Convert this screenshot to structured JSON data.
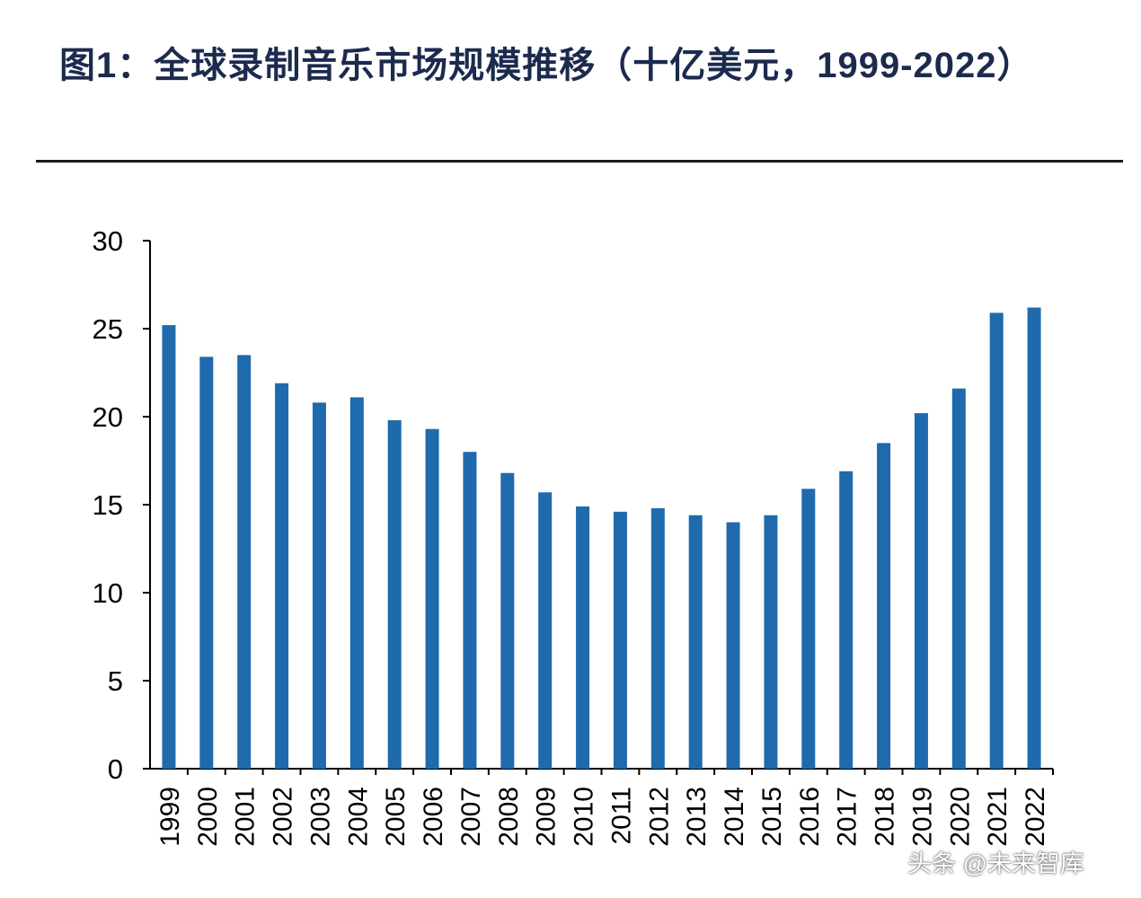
{
  "title": "图1：全球录制音乐市场规模推移（十亿美元，1999-2022）",
  "watermark": "头条 @未来智库",
  "chart_data": {
    "type": "bar",
    "title": "",
    "xlabel": "",
    "ylabel": "",
    "ylim": [
      0,
      30
    ],
    "yticks": [
      0,
      5,
      10,
      15,
      20,
      25,
      30
    ],
    "grid": false,
    "color": "#1f6aad",
    "categories": [
      "1999",
      "2000",
      "2001",
      "2002",
      "2003",
      "2004",
      "2005",
      "2006",
      "2007",
      "2008",
      "2009",
      "2010",
      "2011",
      "2012",
      "2013",
      "2014",
      "2015",
      "2016",
      "2017",
      "2018",
      "2019",
      "2020",
      "2021",
      "2022"
    ],
    "values": [
      25.2,
      23.4,
      23.5,
      21.9,
      20.8,
      21.1,
      19.8,
      19.3,
      18.0,
      16.8,
      15.7,
      14.9,
      14.6,
      14.8,
      14.4,
      14.0,
      14.4,
      15.9,
      16.9,
      18.5,
      20.2,
      21.6,
      25.9,
      26.2
    ]
  }
}
